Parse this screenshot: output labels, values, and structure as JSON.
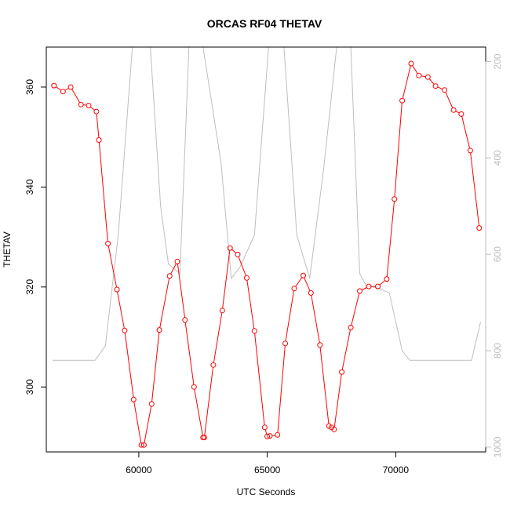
{
  "chart_data": {
    "type": "line",
    "title": "ORCAS RF04 THETAV",
    "xlabel": "UTC Seconds",
    "ylabel": "THETAV",
    "xlim": [
      56400,
      73500
    ],
    "ylim": [
      287,
      368
    ],
    "y2lim": [
      1010,
      170
    ],
    "x_ticks": [
      60000,
      65000,
      70000
    ],
    "y_ticks": [
      300,
      320,
      340,
      360
    ],
    "y2_ticks": [
      200,
      400,
      600,
      800,
      1000
    ],
    "colors": {
      "primary": "#ff0000",
      "secondary": "#bebebe"
    },
    "series": [
      {
        "role": "primary",
        "x": [
          56700,
          57050,
          57350,
          57750,
          58050,
          58350,
          58450,
          58800,
          59150,
          59450,
          59800,
          60100,
          60200,
          60500,
          60800,
          61200,
          61500,
          61800,
          62150,
          62500,
          62550,
          62900,
          63250,
          63550,
          63850,
          64200,
          64500,
          64900,
          65000,
          65100,
          65400,
          65700,
          66050,
          66400,
          66700,
          67050,
          67400,
          67500,
          67600,
          67900,
          68250,
          68600,
          68950,
          69300,
          69650,
          69950,
          70250,
          70600,
          70900,
          71250,
          71550,
          71900,
          72250,
          72550,
          72900,
          73250
        ],
        "y": [
          360.3,
          359.1,
          360,
          356.5,
          356.3,
          355.1,
          349.4,
          328.7,
          319.5,
          311.3,
          297.5,
          288.4,
          288.4,
          296.6,
          311.4,
          322.2,
          325.1,
          313.4,
          300,
          289.9,
          289.9,
          304.4,
          315.3,
          327.8,
          326.5,
          321.8,
          311.2,
          291.9,
          290.1,
          290.2,
          290.4,
          308.7,
          319.7,
          322.3,
          318.8,
          308.4,
          292.2,
          291.9,
          291.5,
          303,
          311.9,
          319.2,
          320.1,
          320.1,
          321.6,
          337.6,
          357.3,
          364.7,
          362.3,
          362,
          360.2,
          359.4,
          355.4,
          354.6,
          347.3,
          331.8
        ]
      },
      {
        "role": "secondary",
        "x": [
          56650,
          58300,
          58700,
          59200,
          59750,
          60450,
          60850,
          61150,
          61600,
          61950,
          62500,
          63200,
          63600,
          63950,
          64500,
          65050,
          65650,
          66150,
          66650,
          67200,
          67700,
          68250,
          68600,
          68850,
          69300,
          69750,
          70250,
          70550,
          72000,
          72950,
          73300
        ],
        "y": [
          820,
          820,
          790,
          560,
          170,
          170,
          500,
          620,
          640,
          170,
          170,
          410,
          650,
          625,
          560,
          170,
          170,
          560,
          650,
          420,
          170,
          170,
          640,
          665,
          670,
          680,
          800,
          820,
          820,
          820,
          740
        ]
      }
    ]
  }
}
